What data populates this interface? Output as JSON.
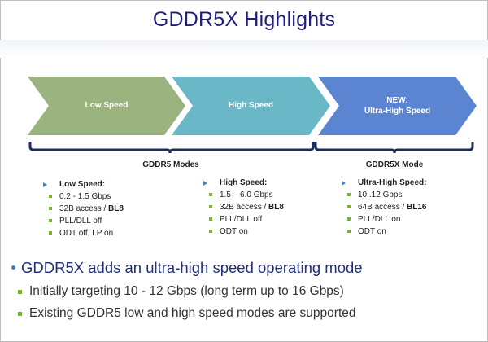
{
  "title": "GDDR5X Highlights",
  "chevrons": [
    {
      "label_lines": [
        "Low Speed"
      ],
      "color": "#9bb37f"
    },
    {
      "label_lines": [
        "High Speed"
      ],
      "color": "#6ab7c8"
    },
    {
      "label_lines": [
        "NEW:",
        "Ultra-High Speed"
      ],
      "color": "#5b85d1"
    }
  ],
  "braces": {
    "gddr5": "GDDR5 Modes",
    "gddr5x": "GDDR5X Mode"
  },
  "columns": [
    {
      "head": "Low Speed:",
      "items": [
        {
          "text": "0.2 - 1.5 Gbps",
          "bold": ""
        },
        {
          "text": "32B access / ",
          "bold": "BL8"
        },
        {
          "text": "PLL/DLL off",
          "bold": ""
        },
        {
          "text": "ODT off, LP on",
          "bold": ""
        }
      ]
    },
    {
      "head": "High Speed:",
      "items": [
        {
          "text": "1.5 – 6.0 Gbps",
          "bold": ""
        },
        {
          "text": "32B access / ",
          "bold": "BL8"
        },
        {
          "text": "PLL/DLL off",
          "bold": ""
        },
        {
          "text": "ODT on",
          "bold": ""
        }
      ]
    },
    {
      "head": "Ultra-High Speed:",
      "items": [
        {
          "text": "10..12 Gbps",
          "bold": ""
        },
        {
          "text": "64B access / ",
          "bold": "BL16"
        },
        {
          "text": "PLL/DLL on",
          "bold": ""
        },
        {
          "text": "ODT on",
          "bold": ""
        }
      ]
    }
  ],
  "bullets": {
    "main": "GDDR5X adds an ultra-high speed operating mode",
    "sub": [
      "Initially targeting  10 - 12 Gbps (long term up to 16 Gbps)",
      "Existing GDDR5 low and high speed modes are supported"
    ]
  }
}
